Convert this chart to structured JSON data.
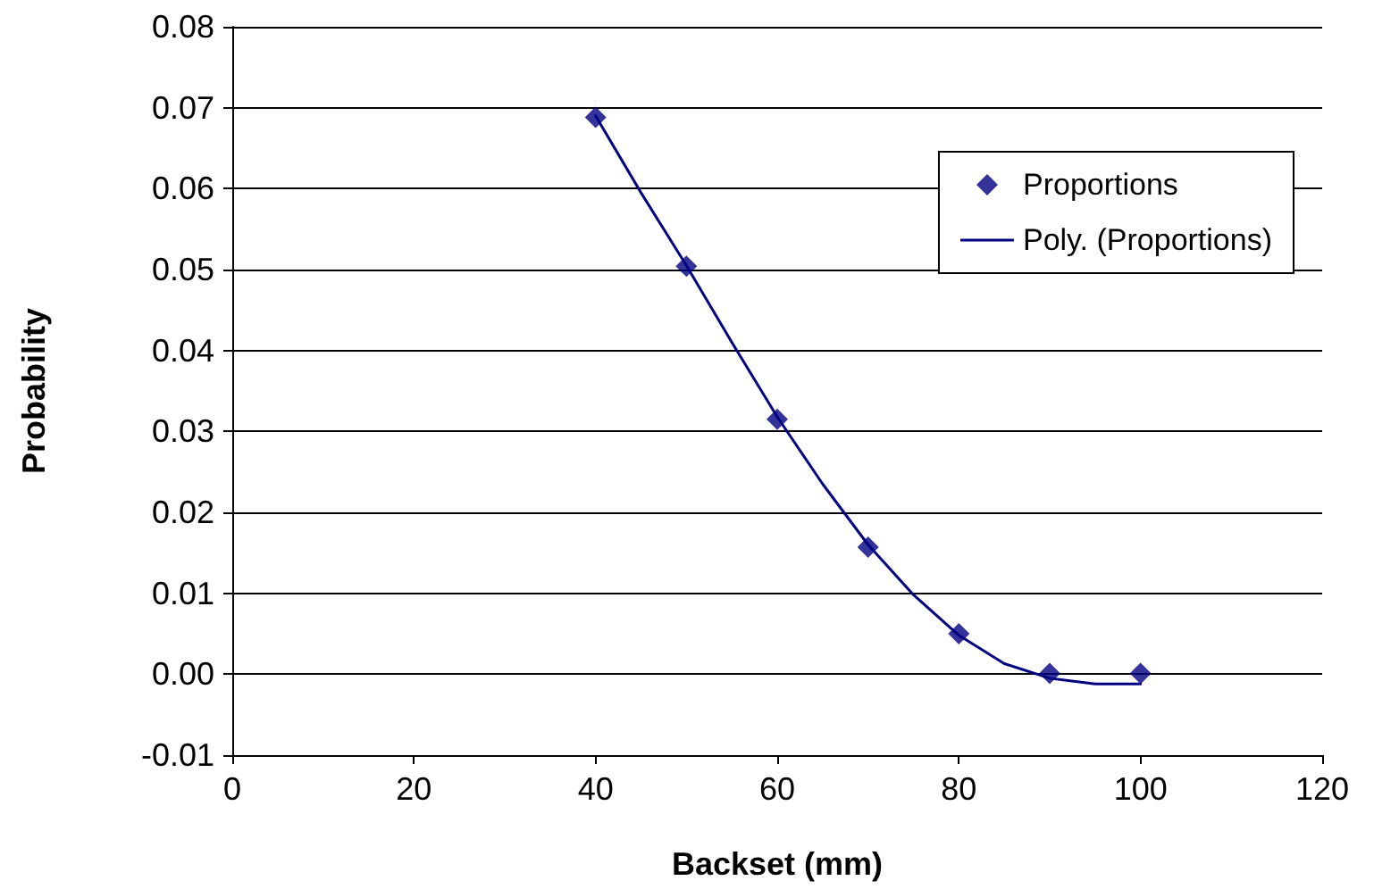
{
  "chart_data": {
    "type": "scatter",
    "xlabel": "Backset (mm)",
    "ylabel": "Probability",
    "xlim": [
      0,
      120
    ],
    "xticks": [
      0,
      20,
      40,
      60,
      80,
      100,
      120
    ],
    "ylim": [
      -0.01,
      0.08
    ],
    "yticks": [
      -0.01,
      {
        "value": 0,
        "label": "0.00"
      },
      0.01,
      0.02,
      0.03,
      0.04,
      0.05,
      0.06,
      0.07,
      0.08
    ],
    "grid": "y",
    "legend": "top right",
    "marker": "diamond",
    "series": [
      {
        "name": "Proportions",
        "color": "#000080",
        "x": [
          40,
          50,
          60,
          70,
          80,
          90,
          100
        ],
        "values": [
          0.0688,
          0.0504,
          0.0315,
          0.0157,
          0.005,
          0.0001,
          0.0001
        ]
      },
      {
        "name": "Poly. (Proportions)",
        "type": "line",
        "color": "#000080",
        "marker": "none",
        "line_style": "solid",
        "x": [
          40,
          45,
          50,
          55,
          60,
          65,
          70,
          75,
          80,
          85,
          90,
          95,
          100
        ],
        "values": [
          0.069,
          0.0595,
          0.0505,
          0.041,
          0.0318,
          0.0235,
          0.016,
          0.0098,
          0.0048,
          0.0013,
          -0.0005,
          -0.0012,
          -0.0012
        ]
      }
    ]
  }
}
